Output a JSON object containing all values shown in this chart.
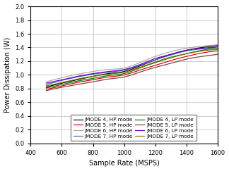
{
  "xlabel": "Sample Rate (MSPS)",
  "ylabel": "Power Dissipation (W)",
  "xlim": [
    400,
    1600
  ],
  "ylim": [
    0,
    2
  ],
  "xticks": [
    400,
    600,
    800,
    1000,
    1200,
    1400,
    1600
  ],
  "yticks": [
    0,
    0.2,
    0.4,
    0.6,
    0.8,
    1.0,
    1.2,
    1.4,
    1.6,
    1.8,
    2.0
  ],
  "series": [
    {
      "label": "JMODE 4, HP mode",
      "color": "#000000",
      "x": [
        500,
        600,
        700,
        800,
        900,
        1000,
        1100,
        1200,
        1300,
        1400,
        1500,
        1600
      ],
      "y": [
        0.82,
        0.88,
        0.93,
        0.98,
        1.02,
        1.05,
        1.13,
        1.22,
        1.3,
        1.36,
        1.4,
        1.43
      ]
    },
    {
      "label": "JMODE 5, HP mode",
      "color": "#cc0000",
      "x": [
        500,
        600,
        700,
        800,
        900,
        1000,
        1100,
        1200,
        1300,
        1400,
        1500,
        1600
      ],
      "y": [
        0.79,
        0.84,
        0.89,
        0.93,
        0.97,
        1.0,
        1.07,
        1.14,
        1.21,
        1.27,
        1.32,
        1.35
      ]
    },
    {
      "label": "JMODE 6, HP mode",
      "color": "#aaaaaa",
      "x": [
        500,
        600,
        700,
        800,
        900,
        1000,
        1100,
        1200,
        1300,
        1400,
        1500,
        1600
      ],
      "y": [
        0.9,
        0.96,
        1.01,
        1.05,
        1.08,
        1.1,
        1.18,
        1.27,
        1.34,
        1.39,
        1.42,
        1.44
      ]
    },
    {
      "label": "JMODE 7, HP mode",
      "color": "#336699",
      "x": [
        500,
        600,
        700,
        800,
        900,
        1000,
        1100,
        1200,
        1300,
        1400,
        1500,
        1600
      ],
      "y": [
        0.86,
        0.92,
        0.97,
        1.01,
        1.04,
        1.07,
        1.14,
        1.22,
        1.29,
        1.35,
        1.38,
        1.41
      ]
    },
    {
      "label": "JMODE 4, LP mode",
      "color": "#007700",
      "x": [
        500,
        600,
        700,
        800,
        900,
        1000,
        1100,
        1200,
        1300,
        1400,
        1500,
        1600
      ],
      "y": [
        0.81,
        0.86,
        0.91,
        0.95,
        0.99,
        1.02,
        1.1,
        1.18,
        1.25,
        1.31,
        1.36,
        1.39
      ]
    },
    {
      "label": "JMODE 5, LP mode",
      "color": "#883333",
      "x": [
        500,
        600,
        700,
        800,
        900,
        1000,
        1100,
        1200,
        1300,
        1400,
        1500,
        1600
      ],
      "y": [
        0.77,
        0.82,
        0.86,
        0.9,
        0.94,
        0.97,
        1.04,
        1.11,
        1.17,
        1.23,
        1.27,
        1.3
      ]
    },
    {
      "label": "JMODE 6, LP mode",
      "color": "#7700cc",
      "x": [
        500,
        600,
        700,
        800,
        900,
        1000,
        1100,
        1200,
        1300,
        1400,
        1500,
        1600
      ],
      "y": [
        0.88,
        0.93,
        0.98,
        1.02,
        1.05,
        1.08,
        1.15,
        1.24,
        1.3,
        1.36,
        1.39,
        1.41
      ]
    },
    {
      "label": "JMODE 7, LP mode",
      "color": "#886600",
      "x": [
        500,
        600,
        700,
        800,
        900,
        1000,
        1100,
        1200,
        1300,
        1400,
        1500,
        1600
      ],
      "y": [
        0.84,
        0.89,
        0.94,
        0.98,
        1.01,
        1.04,
        1.11,
        1.19,
        1.26,
        1.31,
        1.35,
        1.37
      ]
    }
  ],
  "legend_ncol": 2,
  "legend_fontsize": 5.2,
  "axis_fontsize": 7,
  "tick_fontsize": 6
}
